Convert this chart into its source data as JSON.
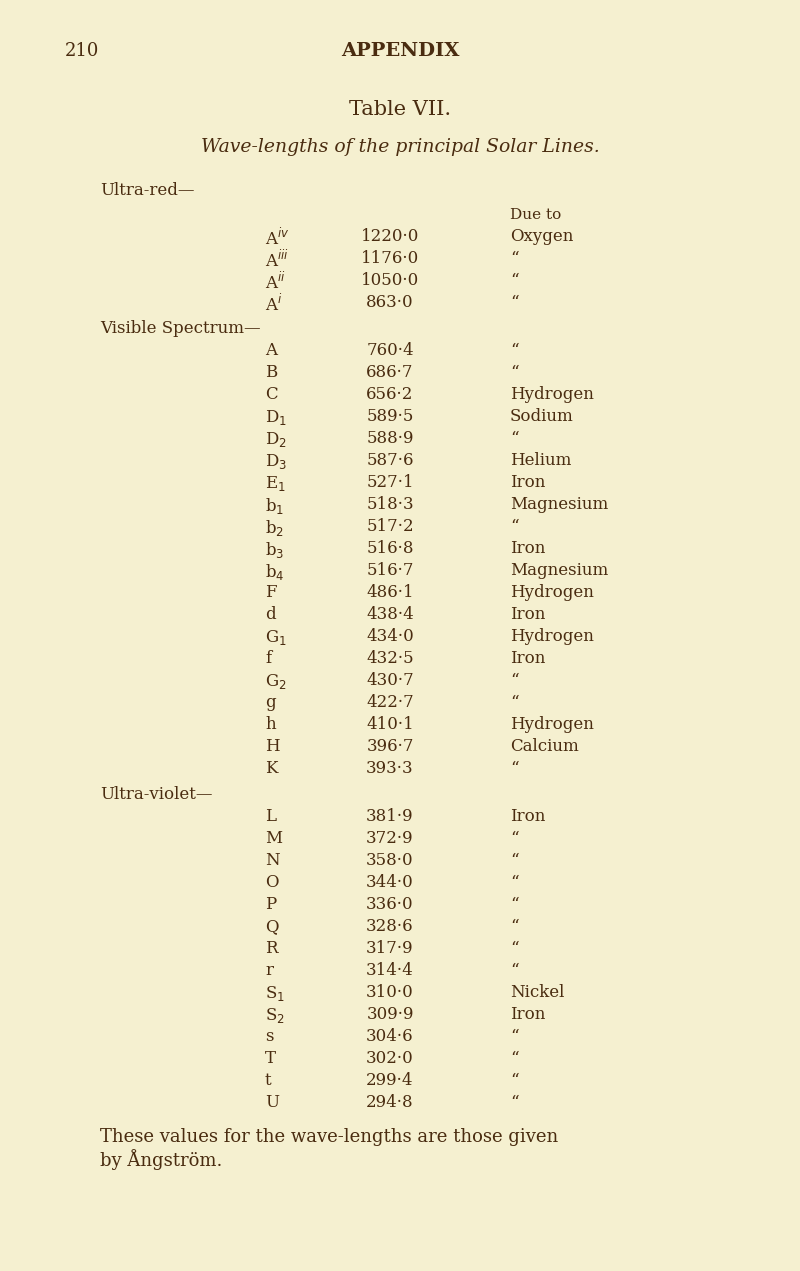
{
  "page_number": "210",
  "header": "APPENDIX",
  "title": "Table VII.",
  "subtitle": "Wave-lengths of the principal Solar Lines.",
  "background_color": "#f5f0d0",
  "text_color": "#4a2c10",
  "section_ultra_red": "Ultra-red—",
  "section_visible": "Visible Spectrum—",
  "section_uv": "Ultra-violet—",
  "col_header_due_to": "Due to",
  "footer": "These values for the wave-lengths are those given\nby Ångström.",
  "rows_ultra_red": [
    {
      "label": "A$^{iv}$",
      "value": "1220·0",
      "due": "Oxygen"
    },
    {
      "label": "A$^{iii}$",
      "value": "1176·0",
      "due": "“"
    },
    {
      "label": "A$^{ii}$",
      "value": "1050·0",
      "due": "“"
    },
    {
      "label": "A$^{i}$",
      "value": "863·0",
      "due": "“"
    }
  ],
  "rows_visible": [
    {
      "label": "A",
      "value": "760·4",
      "due": "“"
    },
    {
      "label": "B",
      "value": "686·7",
      "due": "“"
    },
    {
      "label": "C",
      "value": "656·2",
      "due": "Hydrogen"
    },
    {
      "label": "D$_{1}$",
      "value": "589·5",
      "due": "Sodium"
    },
    {
      "label": "D$_{2}$",
      "value": "588·9",
      "due": "“"
    },
    {
      "label": "D$_{3}$",
      "value": "587·6",
      "due": "Helium"
    },
    {
      "label": "E$_{1}$",
      "value": "527·1",
      "due": "Iron"
    },
    {
      "label": "b$_{1}$",
      "value": "518·3",
      "due": "Magnesium"
    },
    {
      "label": "b$_{2}$",
      "value": "517·2",
      "due": "“"
    },
    {
      "label": "b$_{3}$",
      "value": "516·8",
      "due": "Iron"
    },
    {
      "label": "b$_{4}$",
      "value": "516·7",
      "due": "Magnesium"
    },
    {
      "label": "F",
      "value": "486·1",
      "due": "Hydrogen"
    },
    {
      "label": "d",
      "value": "438·4",
      "due": "Iron"
    },
    {
      "label": "G$_{1}$",
      "value": "434·0",
      "due": "Hydrogen"
    },
    {
      "label": "f",
      "value": "432·5",
      "due": "Iron"
    },
    {
      "label": "G$_{2}$",
      "value": "430·7",
      "due": "“"
    },
    {
      "label": "g",
      "value": "422·7",
      "due": "“"
    },
    {
      "label": "h",
      "value": "410·1",
      "due": "Hydrogen"
    },
    {
      "label": "H",
      "value": "396·7",
      "due": "Calcium"
    },
    {
      "label": "K",
      "value": "393·3",
      "due": "“"
    }
  ],
  "rows_uv": [
    {
      "label": "L",
      "value": "381·9",
      "due": "Iron"
    },
    {
      "label": "M",
      "value": "372·9",
      "due": "“"
    },
    {
      "label": "N",
      "value": "358·0",
      "due": "“"
    },
    {
      "label": "O",
      "value": "344·0",
      "due": "“"
    },
    {
      "label": "P",
      "value": "336·0",
      "due": "“"
    },
    {
      "label": "Q",
      "value": "328·6",
      "due": "“"
    },
    {
      "label": "R",
      "value": "317·9",
      "due": "“"
    },
    {
      "label": "r",
      "value": "314·4",
      "due": "“"
    },
    {
      "label": "S$_{1}$",
      "value": "310·0",
      "due": "Nickel"
    },
    {
      "label": "S$_{2}$",
      "value": "309·9",
      "due": "Iron"
    },
    {
      "label": "s",
      "value": "304·6",
      "due": "“"
    },
    {
      "label": "T",
      "value": "302·0",
      "due": "“"
    },
    {
      "label": "t",
      "value": "299·4",
      "due": "“"
    },
    {
      "label": "U",
      "value": "294·8",
      "due": "“"
    }
  ]
}
